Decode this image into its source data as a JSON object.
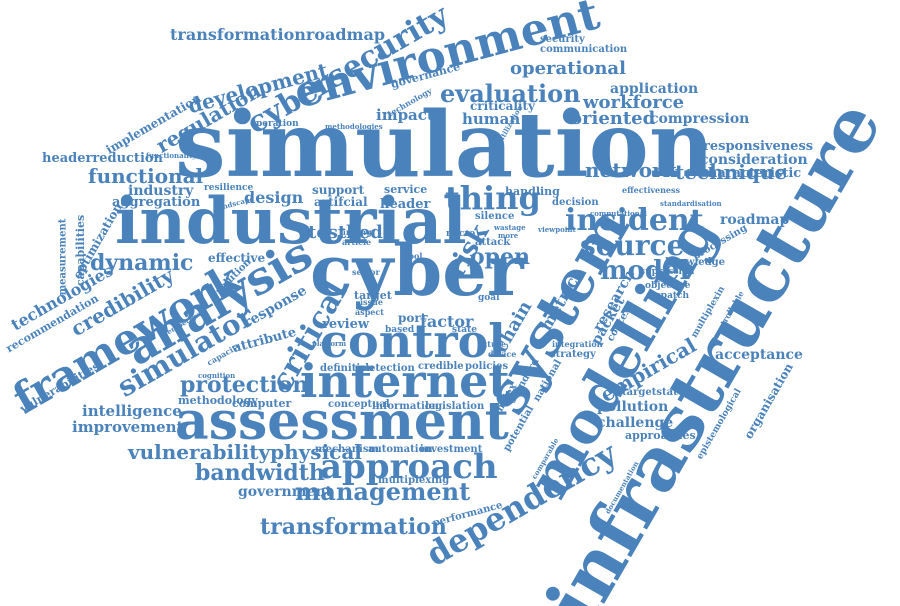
{
  "theme": {
    "word_color": "#4a82bb",
    "background": "#ffffff"
  },
  "words": [
    "simulation",
    "infrastructure",
    "industrial",
    "cyber",
    "modelling",
    "system",
    "assessment",
    "environment",
    "internet",
    "control",
    "analysis",
    "framework",
    "approach",
    "dependency",
    "cybersecurity",
    "incident",
    "management",
    "simulator",
    "thing",
    "source",
    "critical",
    "evaluation",
    "protection",
    "development",
    "operational",
    "network",
    "technique",
    "regulation",
    "transformation",
    "bandwidth",
    "vulnerabilityphysical",
    "model",
    "dynamic",
    "functional",
    "risk",
    "open",
    "transformationroadmap",
    "credibility",
    "technologies",
    "testbed",
    "workforce",
    "oriented",
    "compression",
    "application",
    "empirical",
    "acceptance",
    "consideration",
    "characteristic",
    "responsiveness",
    "roadmap",
    "pollution",
    "challenge",
    "approaches",
    "intelligence",
    "improvement",
    "government",
    "headerreduction",
    "industry",
    "aggregation",
    "design",
    "impact",
    "human",
    "criticality",
    "implementation",
    "recommendation",
    "vulnerabilities",
    "optimization",
    "capabilities",
    "measurement",
    "governance",
    "communication",
    "security",
    "methodology",
    "computer",
    "mechanism",
    "automation",
    "investment",
    "multiplexing",
    "performance",
    "organisation",
    "epistemological",
    "targetstate",
    "response",
    "attribute",
    "effective",
    "solution",
    "support",
    "artifcial",
    "header",
    "service",
    "handling",
    "decision",
    "silence",
    "attack",
    "factor",
    "review",
    "conceptual",
    "information",
    "legislation",
    "detection",
    "credible",
    "policies",
    "definition",
    "port",
    "chain",
    "metric",
    "research",
    "packet",
    "context",
    "strategy",
    "national",
    "complex",
    "standard",
    "potential",
    "knowledge",
    "supression",
    "objective",
    "processing",
    "dispatch",
    "effectiveness",
    "standardisation",
    "multiplexin",
    "uncontrollable",
    "integration",
    "target",
    "resilience",
    "operation",
    "technology",
    "methodologies",
    "utilization",
    "functionality",
    "cognition",
    "capacity",
    "perspective",
    "landscape",
    "finding",
    "article",
    "tool",
    "sector",
    "aspect",
    "based",
    "state",
    "issue",
    "micro",
    "goal",
    "future",
    "device",
    "platform",
    "wastage",
    "more",
    "computational",
    "viewpoint",
    "documentation",
    "comparable"
  ]
}
